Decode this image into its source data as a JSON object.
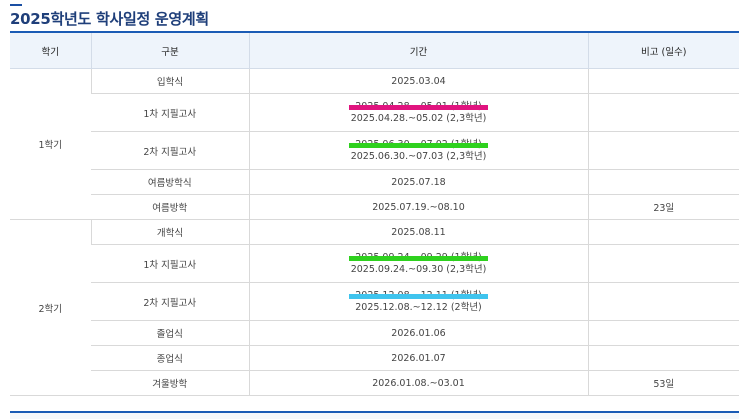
{
  "page": {
    "title": "2025학년도 학사일정 운영계획"
  },
  "table": {
    "headers": [
      "학기",
      "구분",
      "기간",
      "비고 (일수)"
    ],
    "semester1": {
      "name": "1학기",
      "rows": [
        {
          "category": "입학식",
          "period": [
            "2025.03.04"
          ],
          "note": ""
        },
        {
          "category": "1차 지필고사",
          "period": [
            "2025.04.28.~05.01 (1학년)",
            "2025.04.28.~05.02 (2,3학년)"
          ],
          "note": ""
        },
        {
          "category": "2차 지필고사",
          "period": [
            "2025.06.30.~07.02 (1학년)",
            "2025.06.30.~07.03 (2,3학년)"
          ],
          "note": ""
        },
        {
          "category": "여름방학식",
          "period": [
            "2025.07.18"
          ],
          "note": ""
        },
        {
          "category": "여름방학",
          "period": [
            "2025.07.19.~08.10"
          ],
          "note": "23일"
        }
      ]
    },
    "semester2": {
      "name": "2학기",
      "rows": [
        {
          "category": "개학식",
          "period": [
            "2025.08.11"
          ],
          "note": ""
        },
        {
          "category": "1차 지필고사",
          "period": [
            "2025.09.24.~09.29 (1학년)",
            "2025.09.24.~09.30 (2,3학년)"
          ],
          "note": ""
        },
        {
          "category": "2차 지필고사",
          "period": [
            "2025.12.08.~12.11 (1학년)",
            "2025.12.08.~12.12 (2학년)"
          ],
          "note": ""
        },
        {
          "category": "졸업식",
          "period": [
            "2026.01.06"
          ],
          "note": ""
        },
        {
          "category": "종업식",
          "period": [
            "2026.01.07"
          ],
          "note": ""
        },
        {
          "category": "겨울방학",
          "period": [
            "2026.01.08.~03.01"
          ],
          "note": "53일"
        }
      ]
    }
  },
  "highlights": {
    "magenta": "#e0147f",
    "green": "#2ed11e",
    "cyan": "#3fc4ee"
  }
}
